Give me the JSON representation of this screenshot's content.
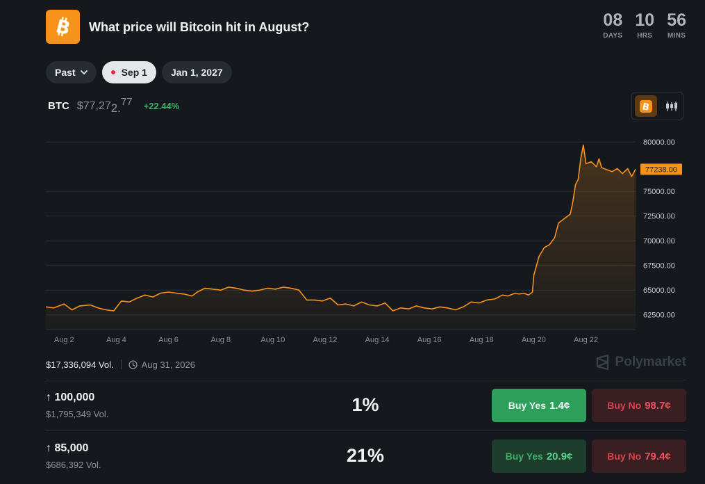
{
  "header": {
    "title": "What price will Bitcoin hit in August?",
    "logo_icon": "bitcoin-logo",
    "countdown": [
      {
        "value": "08",
        "unit": "DAYS"
      },
      {
        "value": "10",
        "unit": "HRS"
      },
      {
        "value": "56",
        "unit": "MINS"
      }
    ]
  },
  "filters": {
    "past_label": "Past",
    "sep_label": "Sep 1",
    "jan_label": "Jan 1, 2027"
  },
  "price": {
    "ticker": "BTC",
    "main": "$77,27",
    "sub": "2.",
    "sup": "77",
    "change": "+22.44%"
  },
  "chart_data": {
    "type": "line",
    "series_name": "BTC",
    "color": "#f7931a",
    "current_label": "77238.00",
    "xlabels": [
      "Aug 2",
      "Aug 4",
      "Aug 6",
      "Aug 8",
      "Aug 10",
      "Aug 12",
      "Aug 14",
      "Aug 16",
      "Aug 18",
      "Aug 20",
      "Aug 22"
    ],
    "yticks": [
      "80000.00",
      "75000.00",
      "72500.00",
      "70000.00",
      "67500.00",
      "65000.00",
      "62500.00"
    ],
    "ylim": [
      61000,
      81000
    ],
    "xlim": [
      1.3,
      23.9
    ],
    "grid": true,
    "x": [
      1.3,
      1.6,
      2.0,
      2.3,
      2.6,
      3.0,
      3.3,
      3.6,
      3.9,
      4.2,
      4.5,
      4.8,
      5.1,
      5.4,
      5.7,
      6.0,
      6.3,
      6.6,
      6.9,
      7.1,
      7.4,
      7.7,
      8.0,
      8.3,
      8.6,
      8.9,
      9.2,
      9.5,
      9.8,
      10.1,
      10.4,
      10.7,
      11.0,
      11.3,
      11.6,
      11.9,
      12.2,
      12.5,
      12.8,
      13.1,
      13.4,
      13.7,
      14.0,
      14.3,
      14.6,
      14.9,
      15.2,
      15.5,
      15.8,
      16.1,
      16.4,
      16.7,
      17.0,
      17.3,
      17.6,
      17.9,
      18.2,
      18.5,
      18.8,
      19.0,
      19.2,
      19.3,
      19.45,
      19.6,
      19.8,
      19.95,
      20.0,
      20.2,
      20.4,
      20.6,
      20.8,
      20.95,
      21.2,
      21.4,
      21.5,
      21.6,
      21.7,
      21.8,
      21.9,
      22.0,
      22.2,
      22.4,
      22.5,
      22.6,
      22.8,
      23.0,
      23.2,
      23.4,
      23.6,
      23.75,
      23.9
    ],
    "y": [
      63300,
      63200,
      63600,
      63000,
      63400,
      63500,
      63200,
      63000,
      62900,
      63900,
      63800,
      64200,
      64500,
      64300,
      64700,
      64800,
      64700,
      64600,
      64400,
      64800,
      65200,
      65100,
      65000,
      65300,
      65200,
      65000,
      64900,
      65000,
      65200,
      65100,
      65300,
      65200,
      65000,
      64000,
      64000,
      63900,
      64200,
      63500,
      63600,
      63400,
      63800,
      63500,
      63400,
      63700,
      62900,
      63200,
      63100,
      63400,
      63200,
      63100,
      63300,
      63200,
      63000,
      63300,
      63800,
      63700,
      64000,
      64100,
      64500,
      64400,
      64600,
      64700,
      64600,
      64700,
      64500,
      64800,
      66500,
      68400,
      69300,
      69600,
      70300,
      71800,
      72300,
      72700,
      74000,
      75700,
      76200,
      78300,
      79700,
      77800,
      78000,
      77500,
      78300,
      77400,
      77200,
      77000,
      77300,
      76800,
      77300,
      76500,
      77238
    ]
  },
  "volume": {
    "total": "$17,336,094 Vol.",
    "date": "Aug 31, 2026",
    "brand": "Polymarket"
  },
  "markets": [
    {
      "label": "↑ 100,000",
      "vol": "$1,795,349 Vol.",
      "pct": "1%",
      "yes_label": "Buy Yes",
      "yes_price": "1.4¢",
      "no_label": "Buy No",
      "no_price": "98.7¢"
    },
    {
      "label": "↑ 85,000",
      "vol": "$686,392 Vol.",
      "pct": "21%",
      "yes_label": "Buy Yes",
      "yes_price": "20.9¢",
      "no_label": "Buy No",
      "no_price": "79.4¢"
    }
  ]
}
